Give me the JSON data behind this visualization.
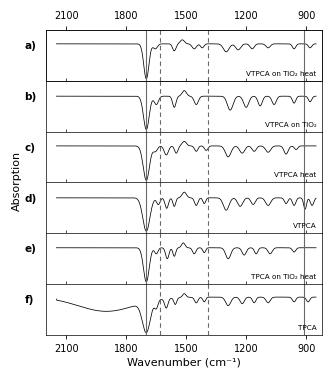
{
  "title": "",
  "xlabel": "Wavenumber (cm⁻¹)",
  "ylabel": "Absorption",
  "x_min": 850,
  "x_max": 2150,
  "x_ticks": [
    900,
    1200,
    1500,
    1800,
    2100
  ],
  "panel_labels": [
    "a)",
    "b)",
    "c)",
    "d)",
    "e)",
    "f)"
  ],
  "panel_annotations": [
    "VTPCA on TiO₂ heat",
    "VTPCA on TiO₂",
    "VTPCA heat",
    "VTPCA",
    "TPCA on TiO₂ heat",
    "TPCA"
  ],
  "vline_solid1": 1700,
  "vline_dashed1": 1630,
  "vline_dashed2": 1390,
  "vline_solid2": 910,
  "background_color": "#ffffff",
  "figsize": [
    3.32,
    3.76
  ],
  "dpi": 100
}
